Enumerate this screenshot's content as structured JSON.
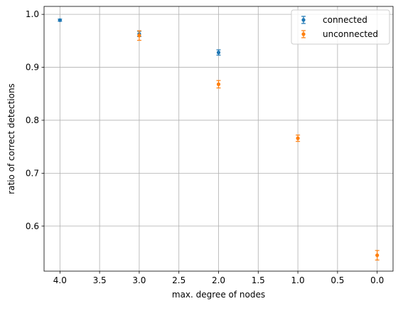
{
  "chart_data": {
    "type": "scatter",
    "xlabel": "max. degree of nodes",
    "ylabel": "ratio of correct detections",
    "xlim": [
      4.2,
      -0.2
    ],
    "ylim": [
      0.515,
      1.015
    ],
    "x_inverted": true,
    "grid": true,
    "legend_position": "top-right",
    "x_ticks": [
      4.0,
      3.5,
      3.0,
      2.5,
      2.0,
      1.5,
      1.0,
      0.5,
      0.0
    ],
    "x_tick_labels": [
      "4.0",
      "3.5",
      "3.0",
      "2.5",
      "2.0",
      "1.5",
      "1.0",
      "0.5",
      "0.0"
    ],
    "y_ticks": [
      0.6,
      0.7,
      0.8,
      0.9,
      1.0
    ],
    "y_tick_labels": [
      "0.6",
      "0.7",
      "0.8",
      "0.9",
      "1.0"
    ],
    "series": [
      {
        "name": "connected",
        "color": "#1f77b4",
        "points": [
          {
            "x": 4.0,
            "y": 0.989,
            "err": 0.002
          },
          {
            "x": 3.0,
            "y": 0.963,
            "err": 0.005
          },
          {
            "x": 2.0,
            "y": 0.928,
            "err": 0.005
          }
        ]
      },
      {
        "name": "unconnected",
        "color": "#ff7f0e",
        "points": [
          {
            "x": 3.0,
            "y": 0.96,
            "err": 0.009
          },
          {
            "x": 2.0,
            "y": 0.868,
            "err": 0.007
          },
          {
            "x": 1.0,
            "y": 0.766,
            "err": 0.006
          },
          {
            "x": 0.0,
            "y": 0.545,
            "err": 0.009
          }
        ]
      }
    ]
  }
}
